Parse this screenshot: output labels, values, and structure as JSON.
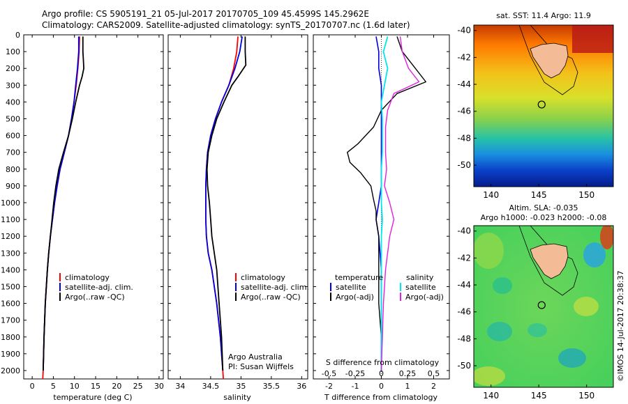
{
  "header": {
    "line1": "Argo profile: CS 5905191_21 05-Jul-2017 20170705_109 45.4599S 145.2962E",
    "line2": "Climatology: CARS2009. Satellite-adjusted climatology: synTS_20170707.nc (1.6d later)"
  },
  "colors": {
    "climatology": "#ff0000",
    "satellite": "#0000dd",
    "argo": "#000000",
    "satellite_s": "#00e5ee",
    "argo_s": "#e020e0"
  },
  "depth_ticks": [
    "0",
    "100",
    "200",
    "300",
    "400",
    "500",
    "600",
    "700",
    "800",
    "900",
    "1000",
    "1100",
    "1200",
    "1300",
    "1400",
    "1500",
    "1600",
    "1700",
    "1800",
    "1900",
    "2000"
  ],
  "chart_data": [
    {
      "type": "line",
      "xlabel": "temperature (deg C)",
      "xticks": [
        "0",
        "5",
        "10",
        "15",
        "20",
        "25",
        "30"
      ],
      "xlim": [
        -2,
        31
      ],
      "ylim": [
        2050,
        0
      ],
      "legend": [
        "climatology",
        "satellite-adj. clim.",
        "Argo(..raw -QC)"
      ],
      "series": [
        {
          "name": "climatology",
          "depth": [
            10,
            100,
            200,
            300,
            400,
            500,
            600,
            700,
            800,
            900,
            1000,
            1100,
            1200,
            1300,
            1400,
            1600,
            1800,
            2000,
            2050
          ],
          "values": [
            11.2,
            11.1,
            10.8,
            10.4,
            9.9,
            9.3,
            8.6,
            7.6,
            6.6,
            5.9,
            5.3,
            4.8,
            4.3,
            3.9,
            3.6,
            3.1,
            2.8,
            2.6,
            2.5
          ]
        },
        {
          "name": "satellite-adj. clim.",
          "depth": [
            10,
            100,
            200,
            300,
            400,
            500,
            600,
            700,
            800,
            900,
            1000,
            1100,
            1200,
            1300,
            1400,
            1600,
            1800,
            2000
          ],
          "values": [
            11.0,
            11.0,
            10.7,
            10.3,
            9.9,
            9.3,
            8.6,
            7.6,
            6.6,
            5.9,
            5.3,
            4.8,
            4.3,
            3.9,
            3.6,
            3.1,
            2.8,
            2.6
          ]
        },
        {
          "name": "Argo(..raw -QC)",
          "depth": [
            10,
            100,
            150,
            200,
            250,
            300,
            400,
            500,
            600,
            700,
            800,
            900,
            1000,
            1100,
            1200,
            1300,
            1400,
            1600,
            1800,
            2000
          ],
          "values": [
            12.0,
            12.0,
            12.1,
            12.2,
            11.8,
            11.2,
            10.3,
            9.5,
            8.6,
            7.4,
            6.3,
            5.6,
            5.1,
            4.7,
            4.3,
            3.9,
            3.6,
            3.1,
            2.8,
            2.6
          ]
        }
      ]
    },
    {
      "type": "line",
      "xlabel": "salinity",
      "xticks": [
        "34",
        "34.5",
        "35",
        "35.5",
        "36"
      ],
      "xlim": [
        33.8,
        36.1
      ],
      "ylim": [
        2050,
        0
      ],
      "legend": [
        "climatology",
        "satellite-adj. clim.",
        "Argo(..raw -QC)"
      ],
      "annotation": [
        "Argo Australia",
        "PI: Susan Wijffels"
      ],
      "series": [
        {
          "name": "climatology",
          "depth": [
            10,
            100,
            200,
            300,
            400,
            500,
            600,
            700,
            800,
            900,
            1000,
            1100,
            1200,
            1300,
            1400,
            1600,
            1800,
            2000,
            2050
          ],
          "values": [
            34.95,
            34.93,
            34.88,
            34.8,
            34.68,
            34.58,
            34.5,
            34.45,
            34.43,
            34.42,
            34.42,
            34.42,
            34.43,
            34.46,
            34.52,
            34.6,
            34.66,
            34.7,
            34.71
          ]
        },
        {
          "name": "satellite-adj. clim.",
          "depth": [
            10,
            100,
            200,
            300,
            400,
            500,
            600,
            700,
            800,
            900,
            1000,
            1100,
            1200,
            1300,
            1400,
            1600,
            1800,
            2000
          ],
          "values": [
            35.02,
            34.98,
            34.9,
            34.8,
            34.68,
            34.58,
            34.5,
            34.45,
            34.43,
            34.42,
            34.42,
            34.42,
            34.43,
            34.46,
            34.52,
            34.6,
            34.66,
            34.7
          ]
        },
        {
          "name": "Argo(..raw -QC)",
          "depth": [
            10,
            100,
            180,
            250,
            300,
            400,
            500,
            600,
            700,
            800,
            900,
            1000,
            1100,
            1200,
            1300,
            1400,
            1600,
            1800,
            2000
          ],
          "values": [
            35.07,
            35.07,
            35.08,
            34.95,
            34.85,
            34.72,
            34.6,
            34.52,
            34.46,
            34.44,
            34.45,
            34.48,
            34.5,
            34.52,
            34.56,
            34.6,
            34.64,
            34.68,
            34.7
          ]
        }
      ]
    },
    {
      "type": "line",
      "xlabel": "T difference from climatology",
      "xlabel2": "S difference from climatology",
      "xticks": [
        "-2",
        "-1",
        "0",
        "1",
        "2"
      ],
      "xticks2": [
        "-0.5",
        "-0.25",
        "0",
        "0.25",
        "0.5"
      ],
      "xlim": [
        -2.6,
        2.6
      ],
      "ylim": [
        2050,
        0
      ],
      "legend_t": [
        "temperature",
        "satellite",
        "Argo(-adj)"
      ],
      "legend_s": [
        "salinity",
        "satellite",
        "Argo(-adj)"
      ],
      "series": [
        {
          "name": "satellite",
          "depth": [
            10,
            100,
            200,
            300,
            400,
            500,
            600,
            700,
            800,
            900,
            1000,
            1100,
            1200,
            1400,
            1600,
            1800,
            2000
          ],
          "values": [
            -0.2,
            -0.1,
            -0.1,
            0.0,
            0.0,
            0.0,
            0.0,
            0.0,
            0.0,
            0.0,
            -0.1,
            -0.2,
            -0.1,
            0.0,
            0.0,
            0.0,
            0.0
          ]
        },
        {
          "name": "Argo(-adj)",
          "depth": [
            10,
            100,
            200,
            280,
            350,
            450,
            550,
            650,
            700,
            760,
            820,
            900,
            980,
            1050,
            1100,
            1200,
            1400,
            1600,
            1800,
            2000
          ],
          "values": [
            0.6,
            0.8,
            1.3,
            1.7,
            0.6,
            0.0,
            -0.3,
            -0.9,
            -1.3,
            -1.2,
            -0.8,
            -0.4,
            -0.3,
            -0.2,
            -0.2,
            -0.1,
            -0.1,
            -0.1,
            0.0,
            0.0
          ]
        },
        {
          "name": "satellite",
          "depth": [
            10,
            100,
            200,
            300,
            400,
            500,
            600,
            700,
            800,
            900,
            1000,
            1100,
            1200,
            1400,
            1600,
            1800,
            2000
          ],
          "values": [
            0.06,
            0.02,
            0.06,
            0.03,
            0.0,
            0.01,
            0.01,
            0.01,
            0.0,
            0.0,
            0.0,
            0.01,
            0.0,
            0.0,
            0.0,
            0.0,
            0.0
          ]
        },
        {
          "name": "Argo(-adj)",
          "depth": [
            10,
            100,
            200,
            280,
            350,
            450,
            550,
            700,
            800,
            900,
            1000,
            1100,
            1200,
            1400,
            1600,
            1800,
            2000
          ],
          "values": [
            0.18,
            0.2,
            0.26,
            0.36,
            0.12,
            0.06,
            0.04,
            0.04,
            0.05,
            0.03,
            0.08,
            0.12,
            0.08,
            0.04,
            0.02,
            0.01,
            0.0
          ]
        }
      ]
    },
    {
      "type": "heatmap",
      "title": "sat. SST: 11.4 Argo: 11.9",
      "xticks": [
        "140",
        "145",
        "150"
      ],
      "yticks": [
        "-40",
        "-42",
        "-44",
        "-46",
        "-48",
        "-50"
      ],
      "xlim": [
        138.2,
        152.8
      ],
      "ylim": [
        -51.6,
        -39.6
      ],
      "marker": {
        "lon": 145.3,
        "lat": -45.5
      }
    },
    {
      "type": "heatmap",
      "title": "Altim. SLA: -0.035",
      "subtitle": "Argo h1000: -0.023 h2000: -0.08",
      "xticks": [
        "140",
        "145",
        "150"
      ],
      "yticks": [
        "-40",
        "-42",
        "-44",
        "-46",
        "-48",
        "-50"
      ],
      "xlim": [
        138.2,
        152.8
      ],
      "ylim": [
        -51.6,
        -39.6
      ],
      "marker": {
        "lon": 145.3,
        "lat": -45.5
      }
    }
  ],
  "side_text": "©IMOS 14-Jul-2017 20:38:37"
}
